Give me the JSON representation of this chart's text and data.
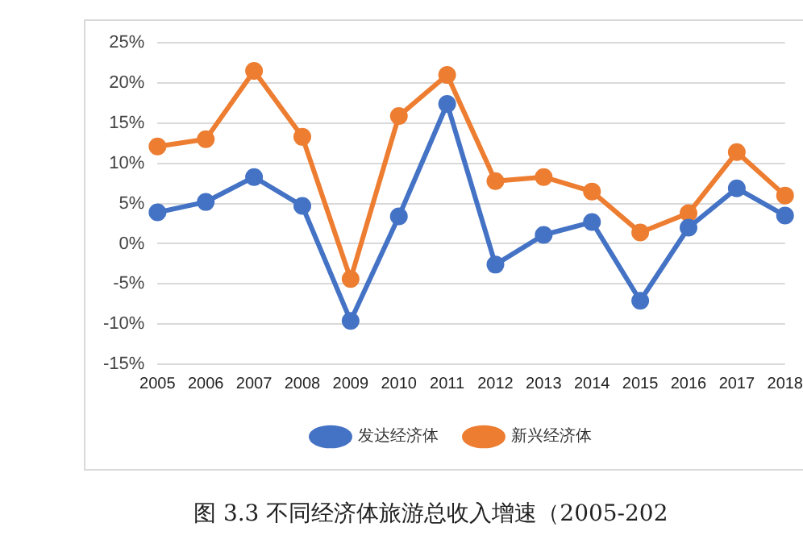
{
  "chart_data": {
    "type": "line",
    "title": "图 3.3 不同经济体旅游总收入增速（2005-202",
    "categories": [
      "2005",
      "2006",
      "2007",
      "2008",
      "2009",
      "2010",
      "2011",
      "2012",
      "2013",
      "2014",
      "2015",
      "2016",
      "2017",
      "2018"
    ],
    "series": [
      {
        "name": "发达经济体",
        "color": "#4472c4",
        "values": [
          3.9,
          5.2,
          8.3,
          4.7,
          -9.6,
          3.4,
          17.4,
          -2.6,
          1.1,
          2.7,
          -7.1,
          2.0,
          6.9,
          3.5
        ]
      },
      {
        "name": "新兴经济体",
        "color": "#ed7d31",
        "values": [
          12.1,
          13.0,
          21.5,
          13.3,
          -4.4,
          15.9,
          21.0,
          7.8,
          8.3,
          6.5,
          1.4,
          3.8,
          11.4,
          6.0
        ]
      }
    ],
    "ylim": [
      -15,
      25
    ],
    "yticks": [
      {
        "value": -15,
        "label": "-15%"
      },
      {
        "value": -10,
        "label": "-10%"
      },
      {
        "value": -5,
        "label": "-5%"
      },
      {
        "value": 0,
        "label": "0%"
      },
      {
        "value": 5,
        "label": "5%"
      },
      {
        "value": 10,
        "label": "10%"
      },
      {
        "value": 15,
        "label": "15%"
      },
      {
        "value": 20,
        "label": "20%"
      },
      {
        "value": 25,
        "label": "25%"
      }
    ],
    "grid": "y",
    "legend": "bottom",
    "marker": "circle",
    "line_style": "solid"
  }
}
